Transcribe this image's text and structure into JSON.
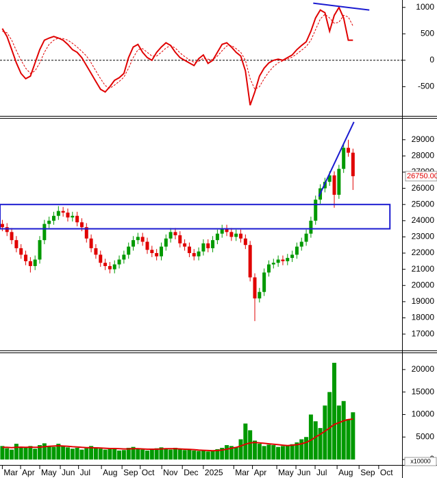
{
  "chart_data": [
    {
      "type": "line",
      "ylim": [
        -1040,
        1140
      ],
      "yticks": [
        -500,
        0,
        500,
        1000
      ],
      "hline": 0,
      "series": [
        {
          "color": "#e00000",
          "style": "solid",
          "values": [
            600,
            450,
            200,
            -50,
            -250,
            -350,
            -300,
            -50,
            200,
            380,
            420,
            450,
            420,
            380,
            300,
            200,
            150,
            50,
            -100,
            -250,
            -400,
            -550,
            -600,
            -500,
            -380,
            -330,
            -250,
            50,
            250,
            300,
            150,
            50,
            0,
            150,
            250,
            330,
            280,
            150,
            50,
            0,
            -50,
            -100,
            30,
            100,
            -60,
            0,
            150,
            300,
            330,
            250,
            150,
            80,
            -200,
            -850,
            -600,
            -300,
            -150,
            -50,
            0,
            20,
            0,
            50,
            100,
            200,
            280,
            350,
            550,
            800,
            950,
            900,
            550,
            850,
            1000,
            800,
            380,
            380
          ]
        },
        {
          "color": "#e00000",
          "style": "dashed",
          "values": [
            550,
            520,
            380,
            180,
            0,
            -150,
            -250,
            -200,
            -50,
            150,
            300,
            380,
            420,
            410,
            380,
            320,
            250,
            170,
            80,
            -50,
            -200,
            -350,
            -480,
            -530,
            -470,
            -400,
            -320,
            -150,
            50,
            200,
            220,
            150,
            80,
            80,
            150,
            230,
            280,
            230,
            140,
            70,
            10,
            -40,
            -20,
            40,
            20,
            10,
            80,
            180,
            270,
            280,
            220,
            150,
            0,
            -350,
            -550,
            -500,
            -350,
            -220,
            -120,
            -50,
            -10,
            20,
            60,
            120,
            190,
            260,
            380,
            580,
            780,
            870,
            800,
            700,
            720,
            850,
            820,
            650
          ]
        }
      ],
      "trendline": {
        "color": "#1a1ad0",
        "x": [
          66.5,
          78.5
        ],
        "y": [
          1080,
          950
        ]
      }
    },
    {
      "type": "candlestick",
      "ylim": [
        16030,
        30260
      ],
      "yticks": [
        17000,
        18000,
        19000,
        20000,
        21000,
        22000,
        23000,
        24000,
        25000,
        26000,
        27000,
        28000,
        29000
      ],
      "up_color": "#009900",
      "down_color": "#e00000",
      "open": [
        23800,
        23600,
        23300,
        22800,
        22300,
        21900,
        21500,
        21200,
        21600,
        22800,
        23800,
        24000,
        24300,
        24600,
        24500,
        24200,
        24300,
        23900,
        23600,
        22900,
        22300,
        21900,
        21400,
        21200,
        21000,
        21300,
        21600,
        21900,
        22400,
        22800,
        23000,
        22700,
        22200,
        22000,
        21800,
        22400,
        22900,
        23300,
        23100,
        22600,
        22400,
        22000,
        21800,
        22100,
        22600,
        22300,
        22800,
        23200,
        23500,
        23300,
        23000,
        23200,
        22900,
        22500,
        20500,
        19200,
        19600,
        20800,
        21300,
        21400,
        21600,
        21500,
        21700,
        21900,
        22400,
        22700,
        23200,
        24000,
        25300,
        26000,
        26400,
        26800,
        25600,
        27200,
        28500,
        28200
      ],
      "high": [
        24050,
        23850,
        23550,
        23050,
        22550,
        22150,
        21750,
        21850,
        23050,
        24050,
        24250,
        24550,
        24900,
        24850,
        24750,
        24550,
        24550,
        24150,
        23850,
        23150,
        22550,
        22150,
        21650,
        21450,
        21550,
        21850,
        22150,
        22650,
        23050,
        23250,
        23250,
        22950,
        22450,
        22250,
        22650,
        23150,
        23550,
        23550,
        23350,
        22850,
        22650,
        22250,
        22350,
        22850,
        22850,
        23050,
        23450,
        23750,
        23750,
        23550,
        23450,
        23450,
        23150,
        22750,
        20750,
        19850,
        21050,
        21550,
        21650,
        21850,
        21850,
        21950,
        22150,
        22650,
        22950,
        23450,
        24250,
        25550,
        26250,
        26650,
        27050,
        27050,
        27450,
        28750,
        29000,
        28450
      ],
      "low": [
        23350,
        23050,
        22550,
        22050,
        21650,
        21250,
        20800,
        20950,
        21350,
        22550,
        23550,
        23750,
        24050,
        24250,
        23950,
        23950,
        23650,
        23350,
        22650,
        22050,
        21650,
        21150,
        20950,
        20750,
        20750,
        21050,
        21350,
        21650,
        22150,
        22550,
        22450,
        21950,
        21750,
        21550,
        21550,
        22150,
        22650,
        22850,
        22350,
        22150,
        21750,
        21550,
        21550,
        21850,
        22050,
        22050,
        22550,
        22950,
        23050,
        22750,
        22750,
        22650,
        22250,
        20250,
        17800,
        18950,
        19350,
        20550,
        21050,
        21150,
        21250,
        21250,
        21450,
        21650,
        22150,
        22450,
        22950,
        23750,
        25050,
        25750,
        26150,
        24800,
        25350,
        26950,
        27950,
        25900
      ],
      "close": [
        23600,
        23300,
        22800,
        22300,
        21900,
        21500,
        21200,
        21600,
        22800,
        23800,
        24000,
        24300,
        24600,
        24500,
        24200,
        24300,
        23900,
        23600,
        22900,
        22300,
        21900,
        21400,
        21200,
        21000,
        21300,
        21600,
        21900,
        22400,
        22800,
        23000,
        22700,
        22200,
        22000,
        21800,
        22400,
        22900,
        23300,
        23100,
        22600,
        22400,
        22000,
        21800,
        22100,
        22600,
        22300,
        22800,
        23200,
        23500,
        23300,
        23000,
        23200,
        22900,
        22500,
        20500,
        19200,
        19600,
        20800,
        21300,
        21400,
        21600,
        21500,
        21700,
        21900,
        22400,
        22700,
        23200,
        24000,
        25300,
        26000,
        26400,
        26800,
        25600,
        27200,
        28500,
        28200,
        26750
      ],
      "last_price": 26750,
      "last_price_label": "26750.00",
      "trendline": {
        "color": "#1a1ad0",
        "x": [
          67.7,
          75.2
        ],
        "y": [
          25500,
          30100
        ]
      },
      "box": {
        "color": "#1a1ad0",
        "x": [
          -0.5,
          82.9
        ],
        "y": [
          23500,
          25000
        ]
      }
    },
    {
      "type": "bar",
      "ylim": [
        -1060,
        23485
      ],
      "yticks": [
        0,
        5000,
        10000,
        15000,
        20000
      ],
      "unit_label": "x10000",
      "color": "#009900",
      "values": [
        3000,
        2500,
        2200,
        3500,
        2800,
        2600,
        3000,
        2400,
        3200,
        3600,
        3000,
        2800,
        3500,
        3100,
        2700,
        2400,
        2600,
        2200,
        2500,
        3000,
        2700,
        2400,
        2200,
        2300,
        2500,
        2000,
        2100,
        2600,
        2800,
        2400,
        2200,
        2000,
        2300,
        2500,
        2700,
        2400,
        2200,
        2600,
        2300,
        2100,
        2200,
        2000,
        1900,
        2100,
        1800,
        2000,
        2300,
        2600,
        3200,
        3000,
        2800,
        4500,
        8000,
        6500,
        4200,
        3500,
        3000,
        3300,
        3200,
        2800,
        3000,
        3100,
        3400,
        3800,
        4500,
        5000,
        10000,
        8500,
        7000,
        12000,
        15000,
        21500,
        12000,
        13000,
        9000,
        10500
      ],
      "ma": {
        "color": "#e00000",
        "values": [
          2700,
          2700,
          2650,
          2700,
          2750,
          2700,
          2750,
          2700,
          2750,
          2850,
          2950,
          3000,
          3050,
          3000,
          2950,
          2850,
          2800,
          2700,
          2650,
          2650,
          2600,
          2550,
          2500,
          2450,
          2450,
          2400,
          2350,
          2350,
          2400,
          2400,
          2350,
          2300,
          2300,
          2300,
          2350,
          2400,
          2400,
          2400,
          2350,
          2300,
          2250,
          2200,
          2100,
          2050,
          2000,
          1950,
          2000,
          2100,
          2300,
          2500,
          2700,
          3000,
          3400,
          3700,
          3800,
          3700,
          3600,
          3500,
          3400,
          3300,
          3200,
          3100,
          3200,
          3300,
          3500,
          3800,
          4300,
          5000,
          5600,
          6300,
          7000,
          7800,
          8200,
          8600,
          8900,
          9000
        ]
      },
      "xlim": [
        -0.5,
        85.5
      ],
      "xticks": [
        {
          "value": 0,
          "label": "Mar"
        },
        {
          "value": 3.9,
          "label": "Apr"
        },
        {
          "value": 8,
          "label": "May"
        },
        {
          "value": 12.4,
          "label": "Jun"
        },
        {
          "value": 16.3,
          "label": "Jul"
        },
        {
          "value": 21.2,
          "label": "Aug"
        },
        {
          "value": 25.6,
          "label": "Sep"
        },
        {
          "value": 29.5,
          "label": "Oct"
        },
        {
          "value": 34.1,
          "label": "Nov"
        },
        {
          "value": 38.5,
          "label": "Dec"
        },
        {
          "value": 43,
          "label": "2025"
        },
        {
          "value": 49.5,
          "label": "Mar"
        },
        {
          "value": 53.5,
          "label": "Apr"
        },
        {
          "value": 58.7,
          "label": "May"
        },
        {
          "value": 62.8,
          "label": "Jun"
        },
        {
          "value": 66.9,
          "label": "Jul"
        },
        {
          "value": 71.6,
          "label": "Aug"
        },
        {
          "value": 76.3,
          "label": "Sep"
        },
        {
          "value": 80.5,
          "label": "Oct"
        }
      ]
    }
  ]
}
